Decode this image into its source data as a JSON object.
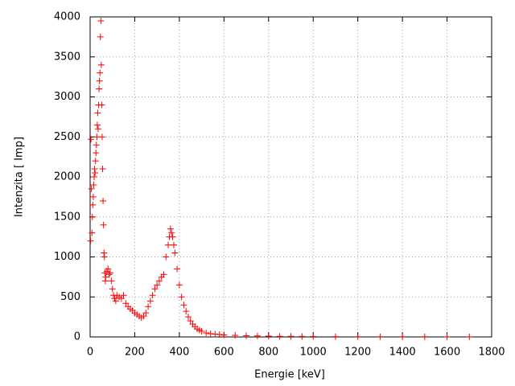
{
  "chart_data": {
    "type": "scatter",
    "xlabel": "Energie [keV]",
    "ylabel": "Intenzita [ Imp]",
    "color": "#ff0000",
    "grid": true,
    "xlim": [
      0,
      1800
    ],
    "ylim": [
      0,
      4000
    ],
    "xticks": [
      0,
      200,
      400,
      600,
      800,
      1000,
      1200,
      1400,
      1600,
      1800
    ],
    "yticks": [
      0,
      500,
      1000,
      1500,
      2000,
      2500,
      3000,
      3500,
      4000
    ],
    "x": [
      2,
      4,
      6,
      8,
      10,
      12,
      14,
      16,
      18,
      20,
      22,
      24,
      26,
      28,
      30,
      32,
      34,
      36,
      38,
      40,
      42,
      44,
      46,
      48,
      50,
      52,
      54,
      56,
      58,
      60,
      62,
      64,
      66,
      68,
      70,
      75,
      80,
      85,
      90,
      95,
      100,
      105,
      110,
      115,
      120,
      130,
      140,
      150,
      160,
      170,
      180,
      190,
      200,
      210,
      220,
      230,
      240,
      250,
      260,
      270,
      280,
      290,
      300,
      310,
      320,
      330,
      340,
      350,
      355,
      360,
      365,
      370,
      375,
      380,
      390,
      400,
      410,
      420,
      430,
      440,
      450,
      460,
      470,
      480,
      490,
      500,
      520,
      540,
      560,
      580,
      600,
      650,
      700,
      750,
      800,
      850,
      900,
      950,
      1000,
      1100,
      1200,
      1300,
      1400,
      1500,
      1600,
      1700
    ],
    "values": [
      1200,
      2470,
      1850,
      1300,
      1500,
      1650,
      1750,
      1900,
      2000,
      2100,
      2050,
      2200,
      2300,
      2400,
      2500,
      2650,
      2800,
      2600,
      2900,
      3100,
      3200,
      3300,
      3750,
      3950,
      3400,
      2900,
      2500,
      2100,
      1700,
      1400,
      1050,
      1000,
      800,
      700,
      750,
      820,
      850,
      780,
      800,
      700,
      600,
      520,
      480,
      450,
      520,
      500,
      480,
      520,
      420,
      380,
      350,
      330,
      300,
      280,
      260,
      240,
      260,
      300,
      380,
      450,
      520,
      600,
      650,
      700,
      750,
      780,
      1000,
      1150,
      1250,
      1350,
      1300,
      1250,
      1150,
      1050,
      850,
      650,
      500,
      400,
      320,
      250,
      200,
      160,
      130,
      100,
      85,
      70,
      50,
      40,
      35,
      30,
      25,
      20,
      15,
      12,
      10,
      8,
      7,
      6,
      5,
      4,
      3,
      3,
      2,
      2,
      1,
      1
    ]
  }
}
